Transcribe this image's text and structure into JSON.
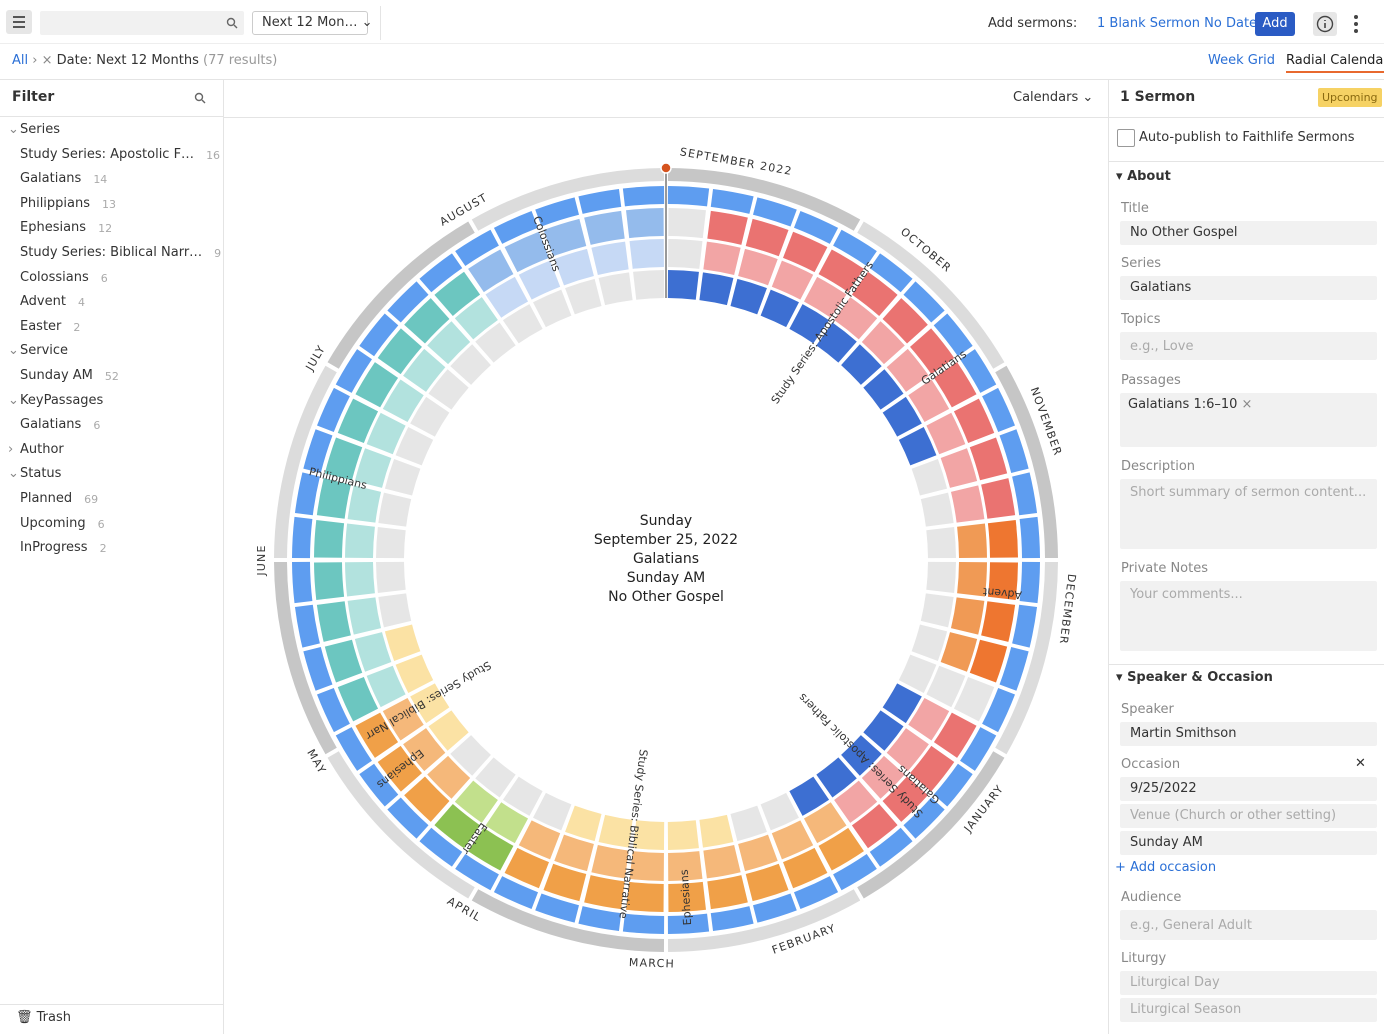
{
  "toolbar": {
    "range": "Next 12 Mon…",
    "add_sermons": "Add sermons:",
    "blank_sermon": "1 Blank Sermon No Date",
    "add": "Add"
  },
  "breadcrumb": {
    "all": "All",
    "filter": "Date: Next 12 Months",
    "results": "(77 results)"
  },
  "tabs": [
    "Week Grid",
    "Radial Calendar"
  ],
  "filter": {
    "title": "Filter",
    "groups": [
      {
        "name": "Series",
        "items": [
          {
            "label": "Study Series: Apostolic F…",
            "count": 16
          },
          {
            "label": "Galatians",
            "count": 14
          },
          {
            "label": "Philippians",
            "count": 13
          },
          {
            "label": "Ephesians",
            "count": 12
          },
          {
            "label": "Study Series: Biblical Narr…",
            "count": 9
          },
          {
            "label": "Colossians",
            "count": 6
          },
          {
            "label": "Advent",
            "count": 4
          },
          {
            "label": "Easter",
            "count": 2
          }
        ]
      },
      {
        "name": "Service",
        "items": [
          {
            "label": "Sunday AM",
            "count": 52
          }
        ]
      },
      {
        "name": "KeyPassages",
        "items": [
          {
            "label": "Galatians",
            "count": 6
          }
        ]
      },
      {
        "name": "Author",
        "items": []
      },
      {
        "name": "Status",
        "items": [
          {
            "label": "Planned",
            "count": 69
          },
          {
            "label": "Upcoming",
            "count": 6
          },
          {
            "label": "InProgress",
            "count": 2
          }
        ]
      }
    ],
    "trash": "Trash"
  },
  "calendar": {
    "menu": "Calendars",
    "months": [
      "SEPTEMBER 2022",
      "OCTOBER",
      "NOVEMBER",
      "DECEMBER",
      "JANUARY",
      "FEBRUARY",
      "MARCH",
      "APRIL",
      "MAY",
      "JUNE",
      "JULY",
      "AUGUST"
    ],
    "series_labels": [
      "Galatians",
      "Study Series: Apostolic Fathers",
      "Advent",
      "Galatians",
      "Study Series: Apostolic Fathers",
      "Ephesians",
      "Easter",
      "Ephesians",
      "Study Series: Biblical Narrative",
      "Study Series: Biblical Narr",
      "Philippians",
      "Colossians"
    ],
    "center": [
      "Sunday",
      "September 25, 2022",
      "Galatians",
      "Sunday AM",
      "No Other Gospel"
    ]
  },
  "panel": {
    "title": "1 Sermon",
    "badge": "Upcoming",
    "autopublish": "Auto-publish to Faithlife Sermons",
    "about": "About",
    "title_label": "Title",
    "title_value": "No Other Gospel",
    "series_label": "Series",
    "series_value": "Galatians",
    "topics_label": "Topics",
    "topics_placeholder": "e.g., Love",
    "passages_label": "Passages",
    "passage": "Galatians 1:6–10",
    "description_label": "Description",
    "description_placeholder": "Short summary of sermon content...",
    "notes_label": "Private Notes",
    "notes_placeholder": "Your comments...",
    "speaker_section": "Speaker & Occasion",
    "speaker_label": "Speaker",
    "speaker_value": "Martin Smithson",
    "occasion_label": "Occasion",
    "occasion_date": "9/25/2022",
    "venue_placeholder": "Venue (Church or other setting)",
    "occasion_service": "Sunday AM",
    "add_occasion": "+ Add occasion",
    "audience_label": "Audience",
    "audience_placeholder": "e.g., General Adult",
    "liturgy_label": "Liturgy",
    "liturgical_day": "Liturgical Day",
    "liturgical_season": "Liturgical Season"
  }
}
